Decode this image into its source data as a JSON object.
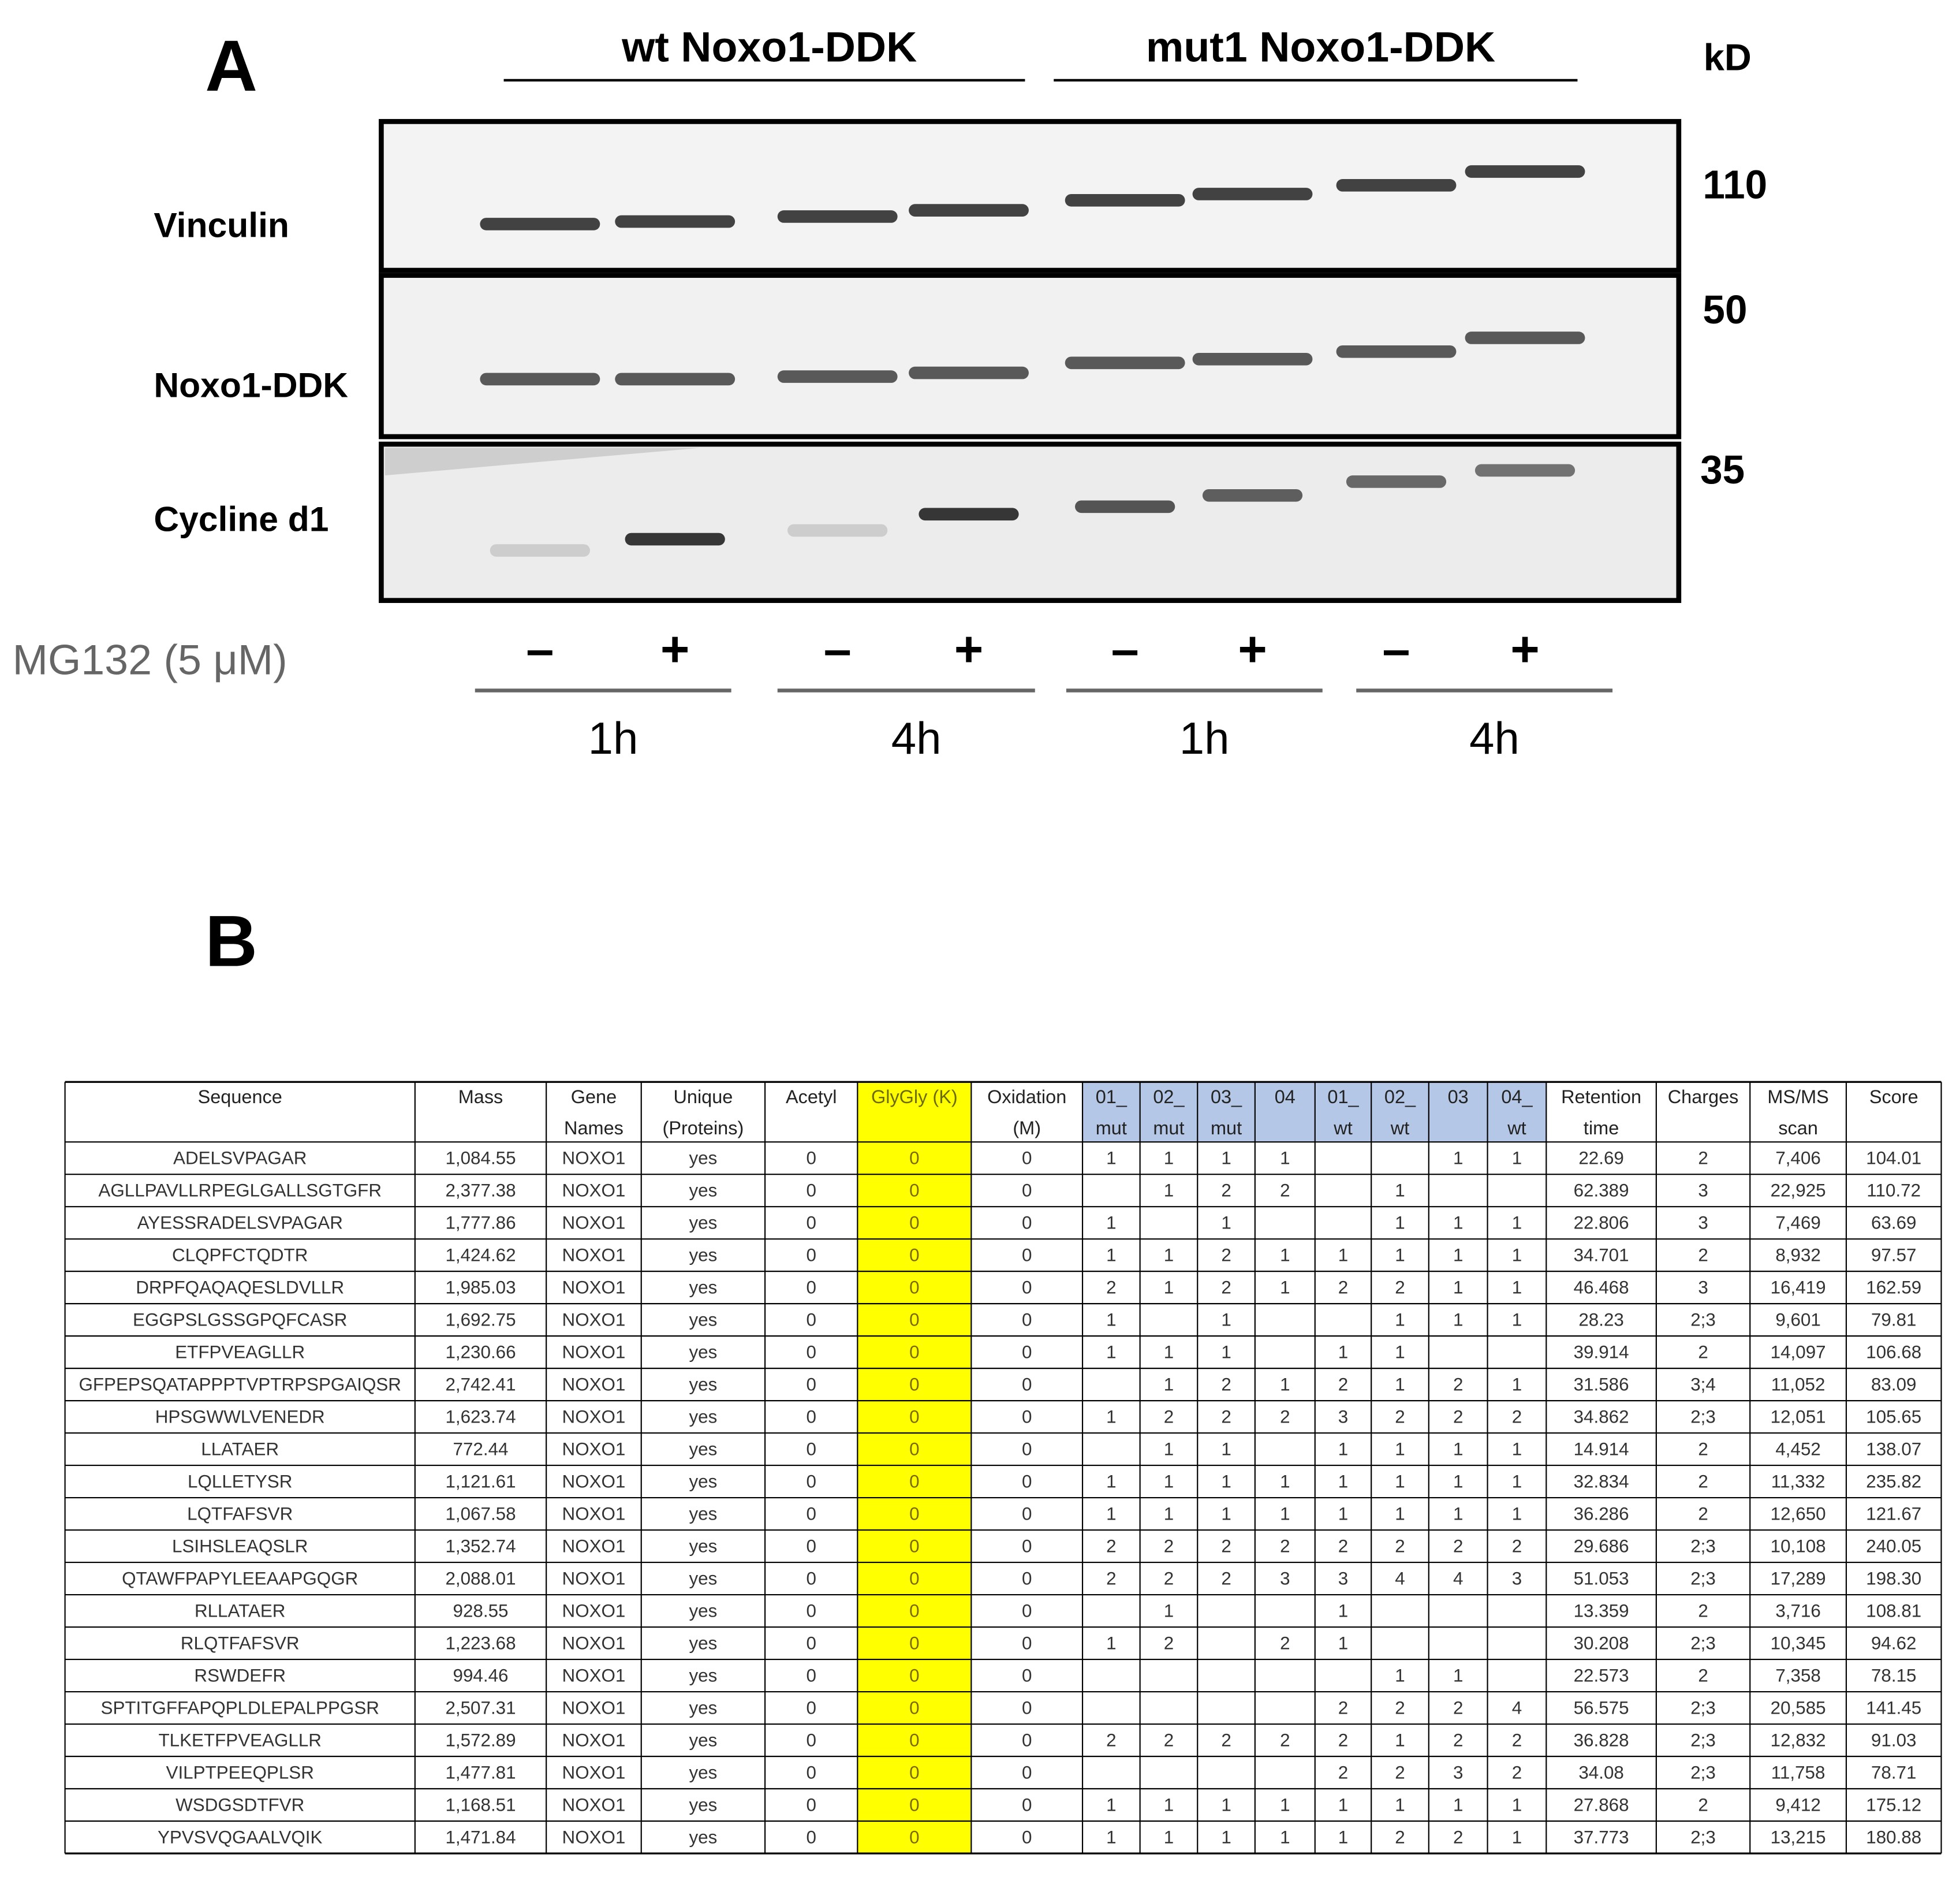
{
  "panel_a": {
    "label": "A",
    "groups": [
      "wt Noxo1-DDK",
      "mut1 Noxo1-DDK"
    ],
    "kd_label": "kD",
    "markers": [
      "110",
      "50",
      "35"
    ],
    "rows": [
      "Vinculin",
      "Noxo1-DDK",
      "Cycline d1"
    ],
    "treatment_label": "MG132 (5 μM)",
    "signs": [
      "–",
      "+",
      "–",
      "+",
      "–",
      "+",
      "–",
      "+"
    ],
    "times": [
      "1h",
      "4h",
      "1h",
      "4h"
    ]
  },
  "panel_b": {
    "label": "B",
    "table": {
      "header": [
        [
          "Sequence"
        ],
        [
          "Mass"
        ],
        [
          "Gene",
          "Names"
        ],
        [
          "Unique",
          "(Proteins)"
        ],
        [
          "Acetyl"
        ],
        [
          "GlyGly (K)"
        ],
        [
          "Oxidation",
          "(M)"
        ],
        [
          "01_",
          "mut"
        ],
        [
          "02_",
          "mut"
        ],
        [
          "03_",
          "mut"
        ],
        [
          "04"
        ],
        [
          "01_",
          "wt"
        ],
        [
          "02_",
          "wt"
        ],
        [
          "03"
        ],
        [
          "04_",
          "wt"
        ],
        [
          "Retention",
          "time"
        ],
        [
          "Charges"
        ],
        [
          "MS/MS",
          "scan"
        ],
        [
          "Score"
        ]
      ],
      "rows": [
        [
          "ADELSVPAGAR",
          "1,084.55",
          "NOXO1",
          "yes",
          "0",
          "0",
          "0",
          "1",
          "1",
          "1",
          "1",
          null,
          null,
          "1",
          "1",
          "22.69",
          "2",
          "7,406",
          "104.01"
        ],
        [
          "AGLLPAVLLRPEGLGALLSGTGFR",
          "2,377.38",
          "NOXO1",
          "yes",
          "0",
          "0",
          "0",
          null,
          "1",
          "2",
          "2",
          null,
          "1",
          null,
          null,
          "62.389",
          "3",
          "22,925",
          "110.72"
        ],
        [
          "AYESSRADELSVPAGAR",
          "1,777.86",
          "NOXO1",
          "yes",
          "0",
          "0",
          "0",
          "1",
          null,
          "1",
          null,
          null,
          "1",
          "1",
          "1",
          "22.806",
          "3",
          "7,469",
          "63.69"
        ],
        [
          "CLQPFCTQDTR",
          "1,424.62",
          "NOXO1",
          "yes",
          "0",
          "0",
          "0",
          "1",
          "1",
          "2",
          "1",
          "1",
          "1",
          "1",
          "1",
          "34.701",
          "2",
          "8,932",
          "97.57"
        ],
        [
          "DRPFQAQAQESLDVLLR",
          "1,985.03",
          "NOXO1",
          "yes",
          "0",
          "0",
          "0",
          "2",
          "1",
          "2",
          "1",
          "2",
          "2",
          "1",
          "1",
          "46.468",
          "3",
          "16,419",
          "162.59"
        ],
        [
          "EGGPSLGSSGPQFCASR",
          "1,692.75",
          "NOXO1",
          "yes",
          "0",
          "0",
          "0",
          "1",
          null,
          "1",
          null,
          null,
          "1",
          "1",
          "1",
          "28.23",
          "2;3",
          "9,601",
          "79.81"
        ],
        [
          "ETFPVEAGLLR",
          "1,230.66",
          "NOXO1",
          "yes",
          "0",
          "0",
          "0",
          "1",
          "1",
          "1",
          null,
          "1",
          "1",
          null,
          null,
          "39.914",
          "2",
          "14,097",
          "106.68"
        ],
        [
          "GFPEPSQATAPPPTVPTRPSPGAIQSR",
          "2,742.41",
          "NOXO1",
          "yes",
          "0",
          "0",
          "0",
          null,
          "1",
          "2",
          "1",
          "2",
          "1",
          "2",
          "1",
          "31.586",
          "3;4",
          "11,052",
          "83.09"
        ],
        [
          "HPSGWWLVENEDR",
          "1,623.74",
          "NOXO1",
          "yes",
          "0",
          "0",
          "0",
          "1",
          "2",
          "2",
          "2",
          "3",
          "2",
          "2",
          "2",
          "34.862",
          "2;3",
          "12,051",
          "105.65"
        ],
        [
          "LLATAER",
          "772.44",
          "NOXO1",
          "yes",
          "0",
          "0",
          "0",
          null,
          "1",
          "1",
          null,
          "1",
          "1",
          "1",
          "1",
          "14.914",
          "2",
          "4,452",
          "138.07"
        ],
        [
          "LQLLETYSR",
          "1,121.61",
          "NOXO1",
          "yes",
          "0",
          "0",
          "0",
          "1",
          "1",
          "1",
          "1",
          "1",
          "1",
          "1",
          "1",
          "32.834",
          "2",
          "11,332",
          "235.82"
        ],
        [
          "LQTFAFSVR",
          "1,067.58",
          "NOXO1",
          "yes",
          "0",
          "0",
          "0",
          "1",
          "1",
          "1",
          "1",
          "1",
          "1",
          "1",
          "1",
          "36.286",
          "2",
          "12,650",
          "121.67"
        ],
        [
          "LSIHSLEAQSLR",
          "1,352.74",
          "NOXO1",
          "yes",
          "0",
          "0",
          "0",
          "2",
          "2",
          "2",
          "2",
          "2",
          "2",
          "2",
          "2",
          "29.686",
          "2;3",
          "10,108",
          "240.05"
        ],
        [
          "QTAWFPAPYLEEAAPGQGR",
          "2,088.01",
          "NOXO1",
          "yes",
          "0",
          "0",
          "0",
          "2",
          "2",
          "2",
          "3",
          "3",
          "4",
          "4",
          "3",
          "51.053",
          "2;3",
          "17,289",
          "198.30"
        ],
        [
          "RLLATAER",
          "928.55",
          "NOXO1",
          "yes",
          "0",
          "0",
          "0",
          null,
          "1",
          null,
          null,
          "1",
          null,
          null,
          null,
          "13.359",
          "2",
          "3,716",
          "108.81"
        ],
        [
          "RLQTFAFSVR",
          "1,223.68",
          "NOXO1",
          "yes",
          "0",
          "0",
          "0",
          "1",
          "2",
          null,
          "2",
          "1",
          null,
          null,
          null,
          "30.208",
          "2;3",
          "10,345",
          "94.62"
        ],
        [
          "RSWDEFR",
          "994.46",
          "NOXO1",
          "yes",
          "0",
          "0",
          "0",
          null,
          null,
          null,
          null,
          null,
          "1",
          "1",
          null,
          "22.573",
          "2",
          "7,358",
          "78.15"
        ],
        [
          "SPTITGFFAPQPLDLEPALPPGSR",
          "2,507.31",
          "NOXO1",
          "yes",
          "0",
          "0",
          "0",
          null,
          null,
          null,
          null,
          "2",
          "2",
          "2",
          "4",
          "56.575",
          "2;3",
          "20,585",
          "141.45"
        ],
        [
          "TLKETFPVEAGLLR",
          "1,572.89",
          "NOXO1",
          "yes",
          "0",
          "0",
          "0",
          "2",
          "2",
          "2",
          "2",
          "2",
          "1",
          "2",
          "2",
          "36.828",
          "2;3",
          "12,832",
          "91.03"
        ],
        [
          "VILPTPEEQPLSR",
          "1,477.81",
          "NOXO1",
          "yes",
          "0",
          "0",
          "0",
          null,
          null,
          null,
          null,
          "2",
          "2",
          "3",
          "2",
          "34.08",
          "2;3",
          "11,758",
          "78.71"
        ],
        [
          "WSDGSDTFVR",
          "1,168.51",
          "NOXO1",
          "yes",
          "0",
          "0",
          "0",
          "1",
          "1",
          "1",
          "1",
          "1",
          "1",
          "1",
          "1",
          "27.868",
          "2",
          "9,412",
          "175.12"
        ],
        [
          "YPVSVQGAALVQIK",
          "1,471.84",
          "NOXO1",
          "yes",
          "0",
          "0",
          "0",
          "1",
          "1",
          "1",
          "1",
          "1",
          "2",
          "2",
          "1",
          "37.773",
          "2;3",
          "13,215",
          "180.88"
        ]
      ]
    }
  }
}
